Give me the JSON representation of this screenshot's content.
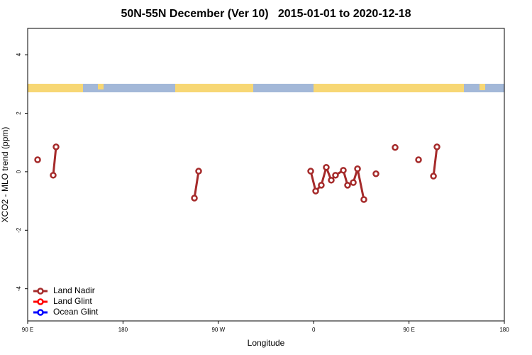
{
  "chart_data": {
    "type": "line",
    "title": "50N-55N December (Ver 10)   2015-01-01 to 2020-12-18",
    "xlabel": "Longitude",
    "ylabel": "XCO2 - MLO trend (ppm)",
    "xlim": [
      90,
      540
    ],
    "xticks": [
      {
        "value": 90,
        "label": "90 E"
      },
      {
        "value": 180,
        "label": "180"
      },
      {
        "value": 270,
        "label": "90 W"
      },
      {
        "value": 360,
        "label": "0"
      },
      {
        "value": 450,
        "label": "90 E"
      },
      {
        "value": 540,
        "label": "180"
      }
    ],
    "ylim": [
      -5.1,
      4.9
    ],
    "yticks": [
      -4,
      -2,
      0,
      2,
      4
    ],
    "legend": "bottom-left",
    "series": [
      {
        "name": "Land Nadir",
        "color": "#a52a2a",
        "x": [
          99.4,
          null,
          114.1,
          116.8,
          null,
          247.4,
          251.4,
          null,
          357.2,
          361.9,
          367.2,
          371.9,
          376.6,
          380.6,
          388.0,
          392.0,
          397.4,
          401.4,
          407.4,
          null,
          418.8,
          null,
          436.9,
          null,
          459.0,
          null,
          473.1,
          476.4
        ],
        "values": [
          0.41,
          null,
          -0.12,
          0.85,
          null,
          -0.9,
          0.02,
          null,
          0.02,
          -0.66,
          -0.46,
          0.15,
          -0.29,
          -0.12,
          0.05,
          -0.46,
          -0.37,
          0.1,
          -0.95,
          null,
          -0.07,
          null,
          0.83,
          null,
          0.41,
          null,
          -0.15,
          0.85
        ]
      },
      {
        "name": "Land Glint",
        "color": "#ff0000",
        "x": [],
        "values": []
      },
      {
        "name": "Ocean Glint",
        "color": "#0000ff",
        "x": [],
        "values": []
      }
    ]
  }
}
